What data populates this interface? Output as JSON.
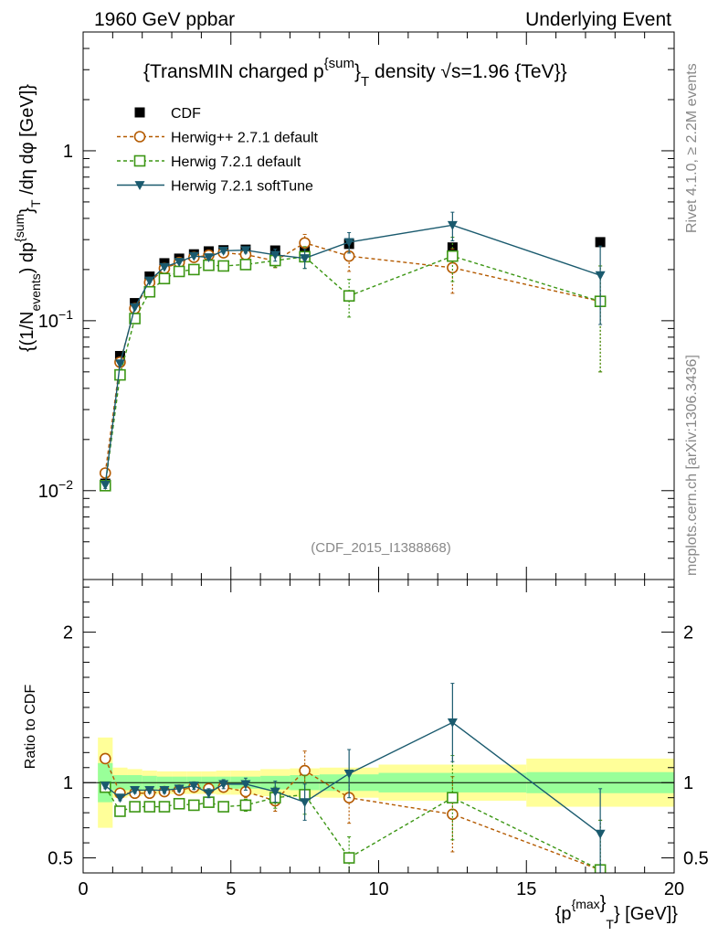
{
  "header": {
    "left": "1960 GeV ppbar",
    "right": "Underlying Event"
  },
  "side_text": {
    "rivet": "Rivet 4.1.0, ≥ 2.2M events",
    "mcplots": "mcplots.cern.ch [arXiv:1306.3436]"
  },
  "chart_data": [
    {
      "panel": "main",
      "type": "scatter",
      "title": "{TransMIN charged p^{sum}_T density √s=1.96 {TeV}}",
      "title_parts": {
        "pre": "{TransMIN charged p",
        "sup": "{sum",
        "close": "}",
        "sub": "T",
        "mid": " density ",
        "sqrt": "√",
        "post": "s=1.96 {TeV}}"
      },
      "ylabel": "{(1/N_events) dp^{sum}_T /dη dφ [GeV]}",
      "ylabel_parts": {
        "a": "{(1/N",
        "b": "events",
        "c": ") dp",
        "d": "{sum",
        "e": "}",
        "f": "T",
        "g": " /dη  dφ [GeV]}"
      },
      "yscale": "log",
      "xlim": [
        0,
        20
      ],
      "ylim": [
        0.003,
        5
      ],
      "y_ticks": [
        {
          "value": 0.01,
          "base": "10",
          "exp": "−2"
        },
        {
          "value": 0.1,
          "base": "10",
          "exp": "−1"
        },
        {
          "value": 1,
          "label": "1"
        }
      ],
      "watermark": "(CDF_2015_I1388868)",
      "legend_position": "top-left",
      "series": [
        {
          "name": "CDF",
          "color": "#000000",
          "marker": "square-filled",
          "x": [
            0.75,
            1.25,
            1.75,
            2.25,
            2.75,
            3.25,
            3.75,
            4.25,
            4.75,
            5.5,
            6.5,
            7.5,
            9.0,
            12.5,
            17.5
          ],
          "y": [
            0.011,
            0.062,
            0.127,
            0.182,
            0.218,
            0.232,
            0.246,
            0.256,
            0.26,
            0.262,
            0.259,
            0.268,
            0.283,
            0.27,
            0.29
          ]
        },
        {
          "name": "Herwig++ 2.7.1 default",
          "color": "#b45a00",
          "marker": "circle-open",
          "x": [
            0.75,
            1.25,
            1.75,
            2.25,
            2.75,
            3.25,
            3.75,
            4.25,
            4.75,
            5.5,
            6.5,
            7.5,
            9.0,
            12.5,
            17.5
          ],
          "y": [
            0.0127,
            0.057,
            0.118,
            0.168,
            0.203,
            0.22,
            0.236,
            0.243,
            0.251,
            0.245,
            0.225,
            0.287,
            0.24,
            0.205,
            0.13
          ],
          "yerr": [
            0.0005,
            0.002,
            0.003,
            0.004,
            0.005,
            0.005,
            0.006,
            0.007,
            0.008,
            0.01,
            0.02,
            0.035,
            0.045,
            0.06,
            0.08
          ]
        },
        {
          "name": "Herwig 7.2.1 default",
          "color": "#3c9614",
          "marker": "square-open",
          "x": [
            0.75,
            1.25,
            1.75,
            2.25,
            2.75,
            3.25,
            3.75,
            4.25,
            4.75,
            5.5,
            6.5,
            7.5,
            9.0,
            12.5,
            17.5
          ],
          "y": [
            0.0107,
            0.048,
            0.103,
            0.148,
            0.177,
            0.195,
            0.2,
            0.212,
            0.21,
            0.214,
            0.226,
            0.238,
            0.14,
            0.24,
            0.13
          ],
          "yerr": [
            0.0005,
            0.002,
            0.003,
            0.004,
            0.005,
            0.005,
            0.006,
            0.007,
            0.008,
            0.01,
            0.02,
            0.035,
            0.035,
            0.07,
            0.08
          ]
        },
        {
          "name": "Herwig 7.2.1 softTune",
          "color": "#1a5a6e",
          "marker": "triangle-down-filled",
          "x": [
            0.75,
            1.25,
            1.75,
            2.25,
            2.75,
            3.25,
            3.75,
            4.25,
            4.75,
            5.5,
            6.5,
            7.5,
            9.0,
            12.5,
            17.5
          ],
          "y": [
            0.0108,
            0.056,
            0.12,
            0.172,
            0.207,
            0.222,
            0.24,
            0.236,
            0.258,
            0.26,
            0.244,
            0.233,
            0.29,
            0.365,
            0.185
          ],
          "yerr": [
            0.0005,
            0.002,
            0.003,
            0.004,
            0.005,
            0.005,
            0.006,
            0.007,
            0.008,
            0.01,
            0.02,
            0.03,
            0.04,
            0.07,
            0.09
          ]
        }
      ]
    },
    {
      "panel": "ratio",
      "type": "scatter",
      "ylabel": "Ratio to CDF",
      "xlabel": "{p_T^{max}} [GeV]}",
      "xlabel_parts": {
        "a": "{p",
        "b": "{max",
        "c": "}",
        "d": "T",
        "e": "} [GeV]}"
      },
      "xlim": [
        0,
        20
      ],
      "ylim": [
        0.4,
        2.35
      ],
      "x_ticks": [
        "0",
        "5",
        "10",
        "15",
        "20"
      ],
      "y_ticks": [
        "0.5",
        "1",
        "2"
      ],
      "reference_bands": {
        "bin_edges": [
          0.5,
          1.0,
          1.5,
          2.0,
          2.5,
          3.0,
          3.5,
          4.0,
          4.5,
          5.0,
          6.0,
          7.0,
          8.0,
          10.0,
          15.0,
          20.0
        ],
        "stat_halfwidth": [
          0.13,
          0.05,
          0.05,
          0.045,
          0.04,
          0.04,
          0.04,
          0.04,
          0.04,
          0.04,
          0.045,
          0.05,
          0.055,
          0.065,
          0.07
        ],
        "total_halfwidth": [
          0.3,
          0.1,
          0.09,
          0.08,
          0.075,
          0.075,
          0.075,
          0.075,
          0.08,
          0.08,
          0.09,
          0.095,
          0.1,
          0.12,
          0.16
        ],
        "stat_color": "#99ff99",
        "total_color": "#ffff99"
      },
      "series": [
        {
          "name": "Herwig++ 2.7.1 default",
          "color": "#b45a00",
          "marker": "circle-open",
          "x": [
            0.75,
            1.25,
            1.75,
            2.25,
            2.75,
            3.25,
            3.75,
            4.25,
            4.75,
            5.5,
            6.5,
            7.5,
            9.0,
            12.5,
            17.5
          ],
          "y": [
            1.16,
            0.93,
            0.93,
            0.93,
            0.94,
            0.95,
            0.97,
            0.96,
            0.97,
            0.94,
            0.88,
            1.08,
            0.9,
            0.79,
            0.42
          ],
          "yerr": [
            0.02,
            0.02,
            0.02,
            0.02,
            0.02,
            0.02,
            0.025,
            0.03,
            0.03,
            0.04,
            0.07,
            0.13,
            0.17,
            0.25,
            0.33
          ]
        },
        {
          "name": "Herwig 7.2.1 default",
          "color": "#3c9614",
          "marker": "square-open",
          "x": [
            0.75,
            1.25,
            1.75,
            2.25,
            2.75,
            3.25,
            3.75,
            4.25,
            4.75,
            5.5,
            6.5,
            7.5,
            9.0,
            12.5,
            17.5
          ],
          "y": [
            0.97,
            0.81,
            0.84,
            0.84,
            0.84,
            0.86,
            0.85,
            0.87,
            0.84,
            0.85,
            0.9,
            0.92,
            0.5,
            0.9,
            0.42
          ],
          "yerr": [
            0.02,
            0.02,
            0.02,
            0.02,
            0.02,
            0.02,
            0.025,
            0.03,
            0.03,
            0.04,
            0.07,
            0.13,
            0.14,
            0.28,
            0.33
          ]
        },
        {
          "name": "Herwig 7.2.1 softTune",
          "color": "#1a5a6e",
          "marker": "triangle-down-filled",
          "x": [
            0.75,
            1.25,
            1.75,
            2.25,
            2.75,
            3.25,
            3.75,
            4.25,
            4.75,
            5.5,
            6.5,
            7.5,
            9.0,
            12.5,
            17.5
          ],
          "y": [
            0.98,
            0.9,
            0.95,
            0.95,
            0.95,
            0.96,
            0.98,
            0.93,
            0.99,
            0.99,
            0.94,
            0.87,
            1.06,
            1.4,
            0.66
          ],
          "yerr": [
            0.02,
            0.02,
            0.02,
            0.02,
            0.02,
            0.02,
            0.025,
            0.03,
            0.03,
            0.04,
            0.07,
            0.12,
            0.16,
            0.26,
            0.3
          ]
        }
      ]
    }
  ]
}
